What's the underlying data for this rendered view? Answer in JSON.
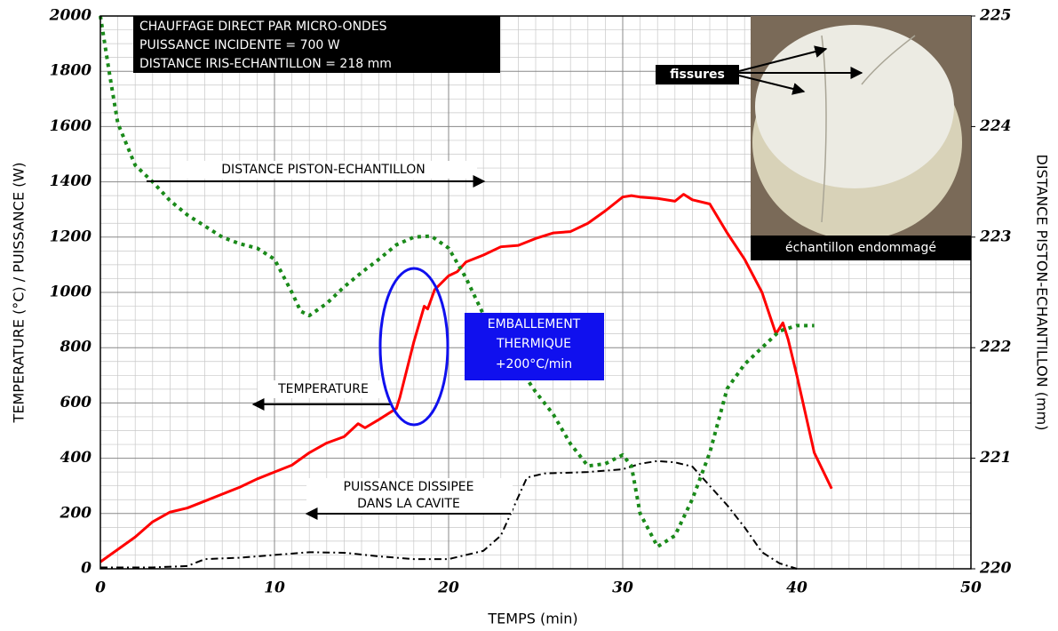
{
  "chart_data": {
    "type": "line",
    "xlabel": "TEMPS (min)",
    "ylabel": "TEMPERATURE (°C) / PUISSANCE (W)",
    "y2label": "DISTANCE PISTON-ECHANTILLON (mm)",
    "xlim": [
      0,
      50
    ],
    "xticks": [
      0,
      10,
      20,
      30,
      40,
      50
    ],
    "ylim": [
      0,
      2000
    ],
    "yticks": [
      0,
      200,
      400,
      600,
      800,
      1000,
      1200,
      1400,
      1600,
      1800,
      2000
    ],
    "y2lim": [
      220,
      225
    ],
    "y2ticks": [
      220,
      221,
      222,
      223,
      224,
      225
    ],
    "grid": true,
    "series": [
      {
        "name": "TEMPERATURE",
        "color": "#ff0000",
        "style": "solid",
        "x": [
          0,
          1,
          2,
          3,
          4,
          5,
          6,
          7,
          8,
          9,
          10,
          11,
          12,
          13,
          14,
          14.8,
          15.2,
          16,
          17,
          17.2,
          18,
          18.6,
          18.8,
          19.2,
          20,
          20.5,
          21,
          22,
          23,
          24,
          25,
          26,
          27,
          28,
          29,
          30,
          30.5,
          31,
          32,
          33,
          33.5,
          34,
          35,
          36,
          37,
          38,
          38.8,
          39.2,
          39.5,
          40,
          41,
          42
        ],
        "values": [
          25,
          70,
          115,
          170,
          205,
          220,
          245,
          270,
          295,
          325,
          350,
          375,
          420,
          455,
          478,
          525,
          510,
          540,
          580,
          620,
          820,
          950,
          940,
          1010,
          1060,
          1075,
          1110,
          1135,
          1165,
          1170,
          1195,
          1215,
          1220,
          1250,
          1295,
          1345,
          1350,
          1345,
          1340,
          1330,
          1355,
          1335,
          1320,
          1215,
          1120,
          1000,
          850,
          890,
          830,
          700,
          420,
          290
        ]
      },
      {
        "color": "#000000",
        "style": "dashdot",
        "x": [
          0,
          3,
          5,
          6,
          8,
          10,
          12,
          14,
          16,
          18,
          20,
          22,
          23,
          24,
          24.5,
          25.5,
          28,
          30,
          31,
          32,
          33,
          34,
          35,
          36,
          37,
          38,
          39,
          40
        ],
        "values": [
          5,
          5,
          10,
          35,
          40,
          50,
          60,
          58,
          45,
          35,
          35,
          65,
          120,
          260,
          330,
          345,
          350,
          360,
          380,
          390,
          385,
          370,
          300,
          230,
          150,
          60,
          20,
          0
        ]
      },
      {
        "name": "DISTANCE PISTON-ECHANTILLON",
        "color": "#1a8a1a",
        "style": "dotted",
        "axis": "y2",
        "x": [
          0,
          0.5,
          1,
          2,
          3,
          4,
          5,
          6,
          7,
          8,
          9,
          10,
          11,
          11.5,
          12,
          13,
          14,
          15,
          16,
          17,
          18,
          19,
          20,
          21,
          22,
          23,
          24,
          25,
          26,
          27,
          28,
          29,
          30,
          30.5,
          31,
          32,
          33,
          34,
          35,
          36,
          37,
          38,
          39,
          40,
          41
        ],
        "values": [
          225,
          224.5,
          224.03,
          223.65,
          223.5,
          223.33,
          223.2,
          223.1,
          223,
          222.94,
          222.9,
          222.8,
          222.5,
          222.33,
          222.29,
          222.4,
          222.55,
          222.68,
          222.8,
          222.93,
          223,
          223.01,
          222.9,
          222.63,
          222.3,
          222.05,
          221.83,
          221.6,
          221.4,
          221.13,
          220.93,
          220.95,
          221.03,
          220.93,
          220.5,
          220.2,
          220.3,
          220.63,
          221.05,
          221.63,
          221.85,
          222,
          222.15,
          222.2,
          222.2
        ]
      }
    ],
    "annotations": {
      "conditions": [
        "CHAUFFAGE DIRECT PAR MICRO-ONDES",
        "PUISSANCE INCIDENTE = 700 W",
        "DISTANCE IRIS-ECHANTILLON = 218 mm"
      ],
      "power_label": [
        "PUISSANCE DISSIPEE",
        "DANS LA CAVITE"
      ],
      "runaway": [
        "EMBALLEMENT",
        "THERMIQUE",
        "+200°C/min"
      ],
      "cracks": "fissures",
      "caption": "échantillon endommagé"
    }
  }
}
